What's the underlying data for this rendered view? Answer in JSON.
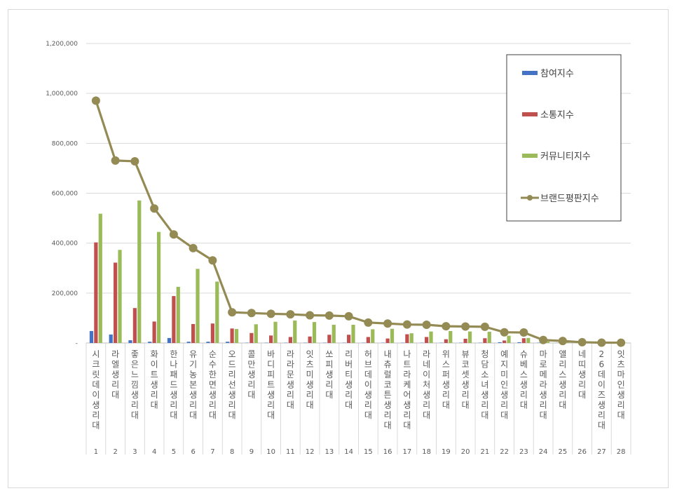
{
  "chart_data": {
    "type": "bar",
    "title": "",
    "xlabel": "",
    "ylabel": "",
    "ylim": [
      0,
      1200000
    ],
    "yticks": [
      "-",
      "200,000",
      "400,000",
      "600,000",
      "800,000",
      "1,000,000",
      "1,200,000"
    ],
    "grid": true,
    "legend_position": "right",
    "categories": [
      "시크릿데이생리대",
      "라엘생리대",
      "좋은느낌생리대",
      "화이트생리대",
      "한나패드생리대",
      "유기농본생리대",
      "순수한면생리대",
      "오드리선생리대",
      "콜만생리대",
      "바디피트생리대",
      "라라문생리대",
      "잇츠미생리대",
      "쏘피생리대",
      "리버티생리대",
      "허브데이생리대",
      "내츄럴코튼생리대",
      "나트라케어생리대",
      "라네이처생리대",
      "위스퍼생리대",
      "뷰코셋생리대",
      "청담소녀생리대",
      "예지미인생리대",
      "슈베스생리대",
      "마로메라생리대",
      "앨리스생리대",
      "네띠생리대",
      "26데이즈생리대",
      "잇츠마인생리대"
    ],
    "ranks": [
      "1",
      "2",
      "3",
      "4",
      "5",
      "6",
      "7",
      "8",
      "9",
      "10",
      "11",
      "12",
      "13",
      "14",
      "15",
      "16",
      "17",
      "18",
      "19",
      "20",
      "21",
      "22",
      "23",
      "24",
      "25",
      "26",
      "27",
      "28"
    ],
    "series": [
      {
        "name": "참여지수",
        "kind": "bar",
        "color": "#4472c4",
        "values": [
          48000,
          34000,
          11000,
          5000,
          20000,
          5000,
          5000,
          5000,
          1000,
          1000,
          1000,
          1000,
          1000,
          1000,
          1000,
          1000,
          1000,
          1000,
          1000,
          1000,
          1000,
          3000,
          3000,
          1000,
          500,
          300,
          200,
          200
        ]
      },
      {
        "name": "소통지수",
        "kind": "bar",
        "color": "#c0504d",
        "values": [
          403000,
          322000,
          140000,
          86000,
          188000,
          76000,
          78000,
          58000,
          40000,
          30000,
          24000,
          26000,
          33000,
          33000,
          24000,
          18000,
          35000,
          24000,
          15000,
          17000,
          19000,
          10000,
          19000,
          5000,
          3000,
          1000,
          500,
          500
        ]
      },
      {
        "name": "커뮤니티지수",
        "kind": "bar",
        "color": "#9bbb59",
        "values": [
          518000,
          373000,
          571000,
          445000,
          225000,
          297000,
          246000,
          56000,
          75000,
          85000,
          90000,
          84000,
          73000,
          73000,
          55000,
          57000,
          39000,
          46000,
          48000,
          46000,
          45000,
          29000,
          20000,
          6000,
          5000,
          2000,
          1000,
          1000
        ]
      },
      {
        "name": "브랜드평판지수",
        "kind": "line",
        "color": "#948a54",
        "values": [
          971000,
          731000,
          728000,
          539000,
          435000,
          380000,
          331000,
          123000,
          120000,
          117000,
          115000,
          111000,
          110000,
          107000,
          82000,
          78000,
          74000,
          73000,
          67000,
          66000,
          65000,
          43000,
          42000,
          12000,
          8000,
          3000,
          1500,
          1200
        ]
      }
    ]
  }
}
